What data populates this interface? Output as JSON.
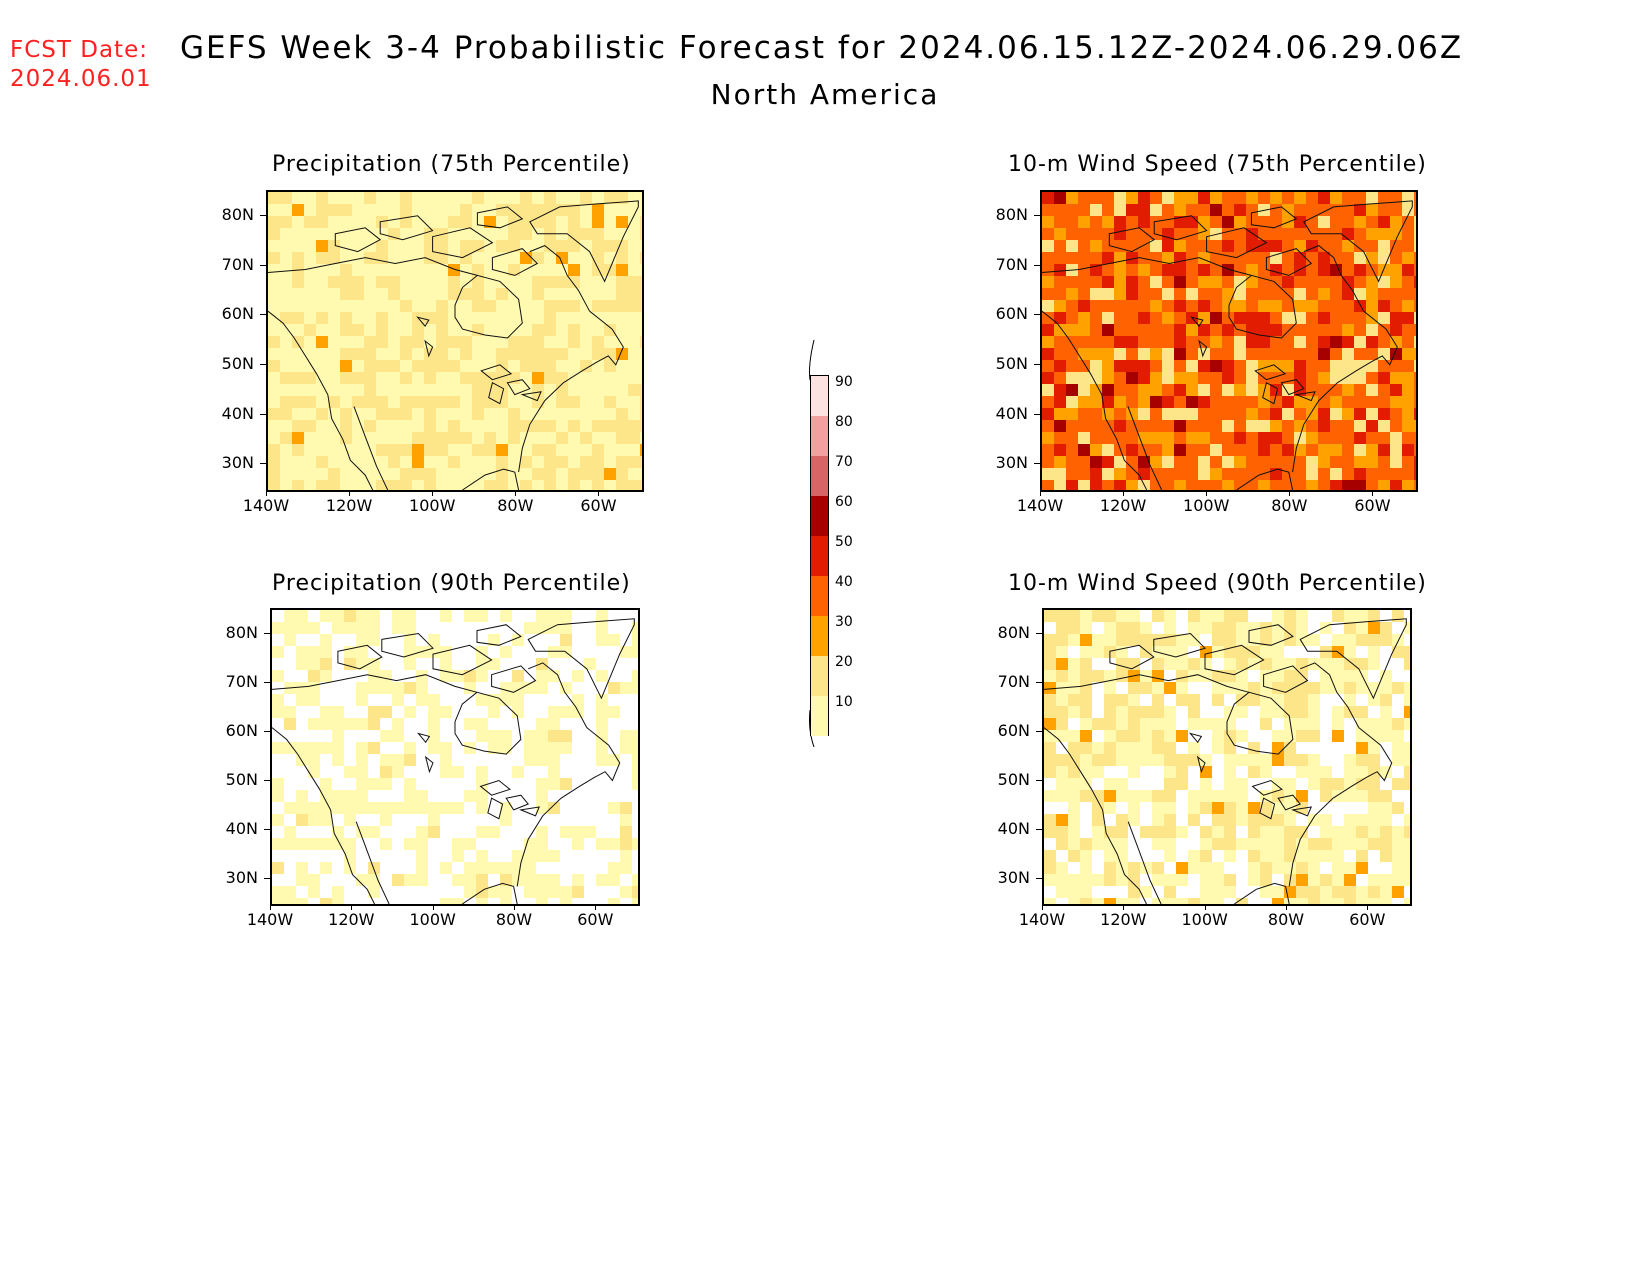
{
  "header": {
    "fcst_label": "FCST Date:",
    "fcst_date": "2024.06.01",
    "title": "GEFS Week 3-4 Probabilistic Forecast for 2024.06.15.12Z-2024.06.29.06Z",
    "subtitle": "North America"
  },
  "panels": [
    {
      "title": "Precipitation (75th Percentile)",
      "variable": "precipitation",
      "percentile": 75,
      "dominant_category": "10-20 / 20-30"
    },
    {
      "title": "10-m Wind Speed (75th Percentile)",
      "variable": "wind",
      "percentile": 75,
      "dominant_category": "40-50 / 50-60"
    },
    {
      "title": "Precipitation (90th Percentile)",
      "variable": "precipitation",
      "percentile": 90,
      "dominant_category": "0-10 / 10-20"
    },
    {
      "title": "10-m Wind Speed (90th Percentile)",
      "variable": "wind",
      "percentile": 90,
      "dominant_category": "10-20 / 20-30"
    }
  ],
  "axes": {
    "lat_labels": [
      "80N",
      "70N",
      "60N",
      "50N",
      "40N",
      "30N"
    ],
    "lon_labels": [
      "140W",
      "120W",
      "100W",
      "80W",
      "60W"
    ]
  },
  "legend": {
    "levels": [
      "10",
      "20",
      "30",
      "40",
      "50",
      "60",
      "70",
      "80",
      "90"
    ],
    "colors": [
      "#fffaaf",
      "#fde68a",
      "#ffa200",
      "#ff6200",
      "#e21c00",
      "#a60000",
      "#d86565",
      "#f3a0a0",
      "#fde2e2"
    ]
  }
}
